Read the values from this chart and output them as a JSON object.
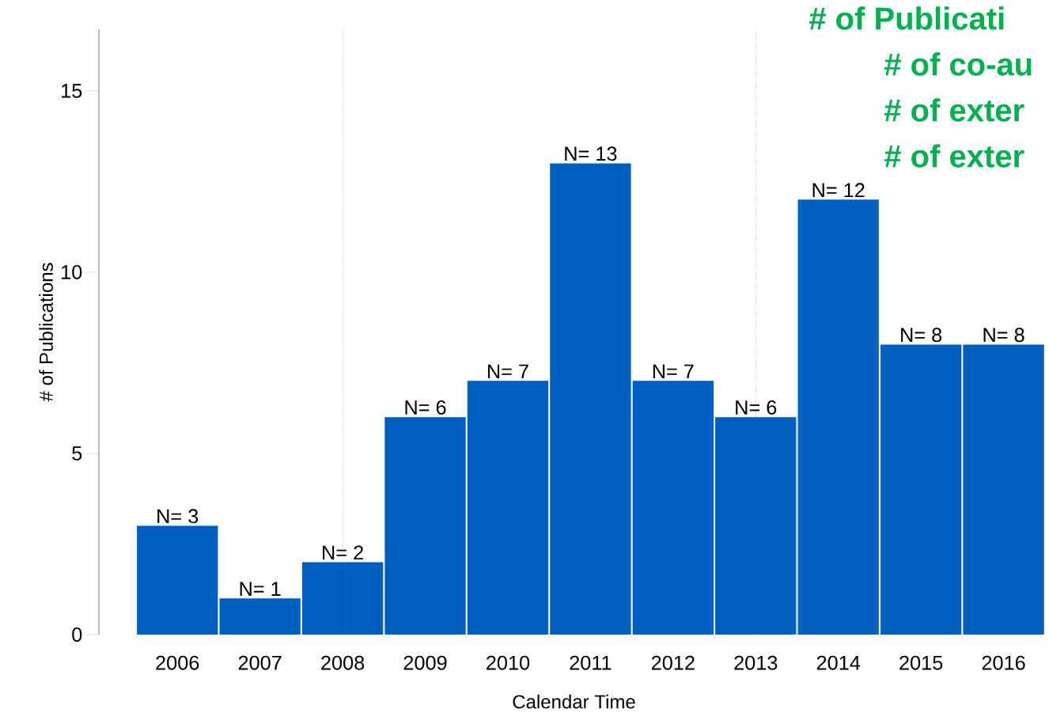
{
  "chart_data": {
    "type": "bar",
    "xlabel": "Calendar Time",
    "ylabel": "# of Publications",
    "categories": [
      "2006",
      "2007",
      "2008",
      "2009",
      "2010",
      "2011",
      "2012",
      "2013",
      "2014",
      "2015",
      "2016"
    ],
    "values": [
      3,
      1,
      2,
      6,
      7,
      13,
      7,
      6,
      12,
      8,
      8
    ],
    "value_labels": [
      "N= 3",
      "N= 1",
      "N= 2",
      "N= 6",
      "N= 7",
      "N= 13",
      "N= 7",
      "N= 6",
      "N= 12",
      "N= 8",
      "N= 8"
    ],
    "color": "#005fbf",
    "ylim": [
      0,
      16.7
    ],
    "yticks": [
      0,
      5,
      10,
      15
    ],
    "ref_lines": [
      {
        "axis": "x",
        "value": "2008",
        "line_style": "dotted"
      },
      {
        "axis": "x",
        "value": "2013",
        "line_style": "dotted"
      }
    ],
    "annotations": [
      "# of Publicati",
      "# of co-au",
      "# of exter",
      "# of exter"
    ],
    "grid": false
  }
}
